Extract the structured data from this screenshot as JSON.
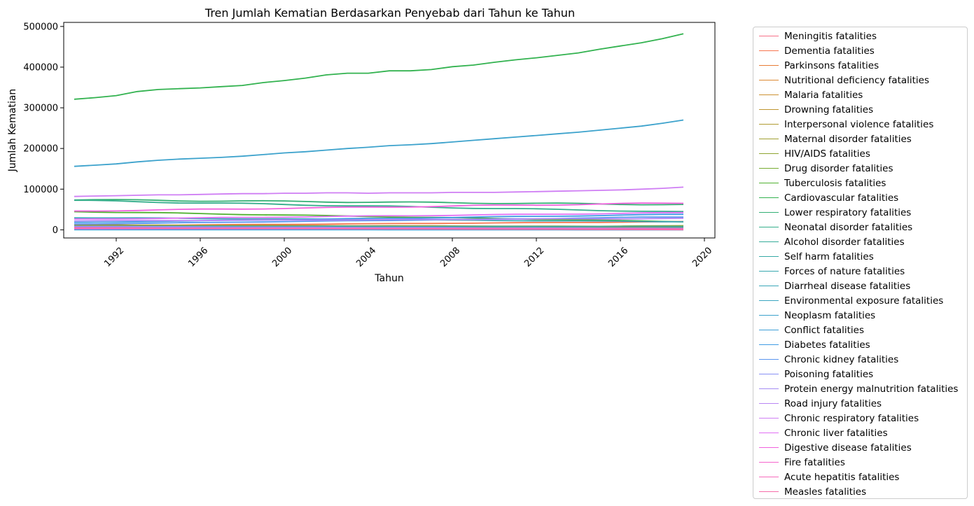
{
  "chart_data": {
    "type": "line",
    "title": "Tren Jumlah Kematian Berdasarkan Penyebab dari Tahun ke Tahun",
    "xlabel": "Tahun",
    "ylabel": "Jumlah Kematian",
    "xlim": [
      1989.5,
      2020.5
    ],
    "ylim": [
      -20000,
      510000
    ],
    "x_ticks": [
      1992,
      1996,
      2000,
      2004,
      2008,
      2012,
      2016,
      2020
    ],
    "y_ticks": [
      0,
      100000,
      200000,
      300000,
      400000,
      500000
    ],
    "x_tick_labels": [
      "1992",
      "1996",
      "2000",
      "2004",
      "2008",
      "2012",
      "2016",
      "2020"
    ],
    "y_tick_labels": [
      "0",
      "100000",
      "200000",
      "300000",
      "400000",
      "500000"
    ],
    "grid": false,
    "legend_position": "outside-right",
    "x": [
      1990,
      1991,
      1992,
      1993,
      1994,
      1995,
      1996,
      1997,
      1998,
      1999,
      2000,
      2001,
      2002,
      2003,
      2004,
      2005,
      2006,
      2007,
      2008,
      2009,
      2010,
      2011,
      2012,
      2013,
      2014,
      2015,
      2016,
      2017,
      2018,
      2019
    ],
    "series": [
      {
        "name": "Meningitis fatalities",
        "color": "#f77189",
        "start": 9000,
        "end": 5000
      },
      {
        "name": "Dementia fatalities",
        "color": "#f7754f",
        "start": 10000,
        "end": 20000
      },
      {
        "name": "Parkinsons fatalities",
        "color": "#e87d37",
        "start": 3000,
        "end": 7000
      },
      {
        "name": "Nutritional deficiency fatalities",
        "color": "#dc8932",
        "start": 9000,
        "end": 4000
      },
      {
        "name": "Malaria fatalities",
        "color": "#cc9131",
        "start": 2000,
        "end": 1000
      },
      {
        "name": "Drowning fatalities",
        "color": "#bf9631",
        "start": 8000,
        "end": 4000
      },
      {
        "name": "Interpersonal violence fatalities",
        "color": "#b09b31",
        "start": 12000,
        "end": 8000
      },
      {
        "name": "Maternal disorder fatalities",
        "color": "#a1a031",
        "start": 5000,
        "end": 2000
      },
      {
        "name": "HIV/AIDS fatalities",
        "color": "#8ea531",
        "start": 1000,
        "end": 10000
      },
      {
        "name": "Drug disorder fatalities",
        "color": "#77ab31",
        "start": 1500,
        "end": 2500
      },
      {
        "name": "Tuberculosis fatalities",
        "color": "#50b131",
        "start": 45000,
        "end": 20000
      },
      {
        "name": "Cardiovascular fatalities",
        "color": "#32b24f",
        "values": [
          321000,
          325000,
          330000,
          340000,
          345000,
          347000,
          349000,
          352000,
          355000,
          362000,
          367000,
          373000,
          381000,
          385000,
          385000,
          391000,
          391000,
          394000,
          401000,
          405000,
          412000,
          418000,
          423000,
          429000,
          435000,
          444000,
          452000,
          460000,
          470000,
          482000
        ]
      },
      {
        "name": "Lower respiratory fatalities",
        "color": "#33b074",
        "start": 74000,
        "end": 62000
      },
      {
        "name": "Neonatal disorder fatalities",
        "color": "#35ae8c",
        "start": 72000,
        "end": 44000
      },
      {
        "name": "Alcohol disorder fatalities",
        "color": "#36ac9a",
        "start": 5000,
        "end": 4000
      },
      {
        "name": "Self harm fatalities",
        "color": "#37aaa5",
        "start": 9000,
        "end": 8000
      },
      {
        "name": "Forces of nature fatalities",
        "color": "#38a8af",
        "start": 500,
        "end": 300
      },
      {
        "name": "Diarrheal disease fatalities",
        "color": "#39a7b8",
        "start": 30000,
        "end": 20000
      },
      {
        "name": "Environmental exposure fatalities",
        "color": "#3aa5c1",
        "start": 1200,
        "end": 700
      },
      {
        "name": "Neoplasm fatalities",
        "color": "#3ca2cc",
        "values": [
          156000,
          159000,
          162000,
          167000,
          171000,
          174000,
          176000,
          178000,
          181000,
          185000,
          189000,
          192000,
          196000,
          200000,
          203000,
          207000,
          209000,
          212000,
          216000,
          220000,
          224000,
          228000,
          232000,
          236000,
          240000,
          245000,
          250000,
          255000,
          262000,
          270000
        ]
      },
      {
        "name": "Conflict fatalities",
        "color": "#3d9fd7",
        "start": 300,
        "end": 200
      },
      {
        "name": "Diabetes fatalities",
        "color": "#3e9be4",
        "start": 18000,
        "end": 38000
      },
      {
        "name": "Chronic kidney fatalities",
        "color": "#5a95ef",
        "start": 14000,
        "end": 32000
      },
      {
        "name": "Poisoning fatalities",
        "color": "#8890f4",
        "start": 2500,
        "end": 1500
      },
      {
        "name": "Protein energy malnutrition fatalities",
        "color": "#a48cf4",
        "start": 8000,
        "end": 3500
      },
      {
        "name": "Road injury fatalities",
        "color": "#b986f4",
        "start": 22000,
        "end": 28000
      },
      {
        "name": "Chronic respiratory fatalities",
        "color": "#cf7ef4",
        "values": [
          82000,
          83000,
          84000,
          85000,
          86000,
          86000,
          87000,
          88000,
          89000,
          89000,
          90000,
          90000,
          91000,
          91000,
          90000,
          91000,
          91000,
          91000,
          92000,
          92000,
          92000,
          93000,
          94000,
          95000,
          96000,
          97000,
          98000,
          100000,
          102000,
          105000
        ]
      },
      {
        "name": "Chronic liver fatalities",
        "color": "#e26ff4",
        "start": 26000,
        "end": 42000
      },
      {
        "name": "Digestive disease fatalities",
        "color": "#f061dd",
        "start": 46000,
        "end": 66000
      },
      {
        "name": "Fire fatalities",
        "color": "#f565cc",
        "start": 3000,
        "end": 2500
      },
      {
        "name": "Acute hepatitis fatalities",
        "color": "#f66bbc",
        "start": 4500,
        "end": 2000
      },
      {
        "name": "Measles fatalities",
        "color": "#f66ea9",
        "start": 5000,
        "end": 300
      }
    ]
  }
}
